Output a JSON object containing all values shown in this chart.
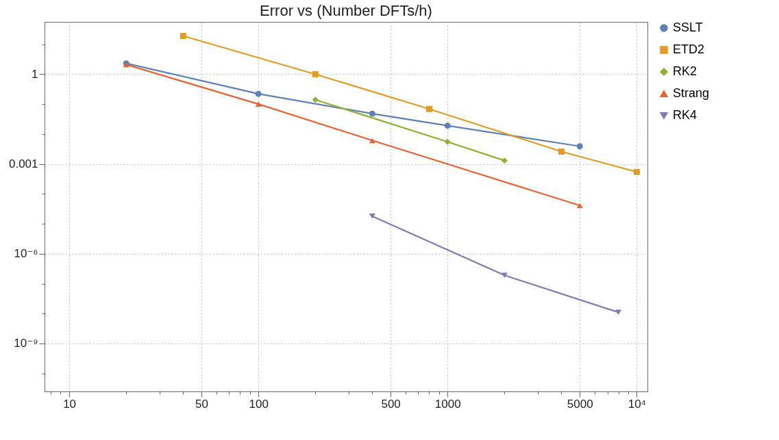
{
  "chart_data": {
    "type": "line",
    "title": "Error vs (Number DFTs/h)",
    "log": "xy",
    "grid": true,
    "legend": "right",
    "line_style": "solid",
    "xlim": [
      7.4,
      11400
    ],
    "ylim": [
      2.5e-11,
      56
    ],
    "xticks": [
      {
        "value": 8,
        "label": null
      },
      {
        "value": 9,
        "label": null
      },
      10,
      {
        "value": 20,
        "label": null
      },
      {
        "value": 30,
        "label": null
      },
      {
        "value": 40,
        "label": null
      },
      50,
      {
        "value": 60,
        "label": null
      },
      {
        "value": 70,
        "label": null
      },
      {
        "value": 80,
        "label": null
      },
      {
        "value": 90,
        "label": null
      },
      100,
      {
        "value": 200,
        "label": null
      },
      {
        "value": 300,
        "label": null
      },
      {
        "value": 400,
        "label": null
      },
      500,
      {
        "value": 600,
        "label": null
      },
      {
        "value": 700,
        "label": null
      },
      {
        "value": 800,
        "label": null
      },
      {
        "value": 900,
        "label": null
      },
      1000,
      {
        "value": 2000,
        "label": null
      },
      {
        "value": 3000,
        "label": null
      },
      {
        "value": 4000,
        "label": null
      },
      5000,
      {
        "value": 6000,
        "label": null
      },
      {
        "value": 7000,
        "label": null
      },
      {
        "value": 8000,
        "label": null
      },
      {
        "value": 9000,
        "label": null
      },
      {
        "value": 10000,
        "label": "10⁴"
      }
    ],
    "yticks": [
      {
        "value": 1e-10,
        "label": null
      },
      {
        "value": 1e-09,
        "label": "10⁻⁹"
      },
      {
        "value": 1e-08,
        "label": null
      },
      {
        "value": 1e-07,
        "label": null
      },
      {
        "value": 1e-06,
        "label": "10⁻⁶"
      },
      {
        "value": 1e-05,
        "label": null
      },
      {
        "value": 0.0001,
        "label": null
      },
      0.001,
      {
        "value": 0.01,
        "label": null
      },
      {
        "value": 0.1,
        "label": null
      },
      1,
      {
        "value": 10,
        "label": null
      }
    ],
    "series": [
      {
        "name": "SSLT",
        "color": "#5e81b5",
        "marker": "circle",
        "x": [
          20,
          100,
          400,
          1000,
          5000
        ],
        "values": [
          2.3,
          0.22,
          0.048,
          0.019,
          0.0039
        ]
      },
      {
        "name": "ETD2",
        "color": "#e19c24",
        "marker": "square",
        "x": [
          40,
          200,
          800,
          4000,
          10000
        ],
        "values": [
          19,
          1.0,
          0.069,
          0.0026,
          0.00054
        ]
      },
      {
        "name": "RK2",
        "color": "#8fb032",
        "marker": "diamond",
        "x": [
          200,
          1000,
          2000
        ],
        "values": [
          0.14,
          0.0055,
          0.0013
        ]
      },
      {
        "name": "Strang",
        "color": "#eb6235",
        "marker": "triangle",
        "x": [
          20,
          100,
          400,
          5000
        ],
        "values": [
          2.1,
          0.1,
          0.0061,
          4.1e-05
        ]
      },
      {
        "name": "RK4",
        "color": "#8778b3",
        "marker": "triangle-down",
        "x": [
          400,
          2000,
          8000
        ],
        "values": [
          1.8e-05,
          1.9e-07,
          1.1e-08
        ]
      }
    ]
  }
}
